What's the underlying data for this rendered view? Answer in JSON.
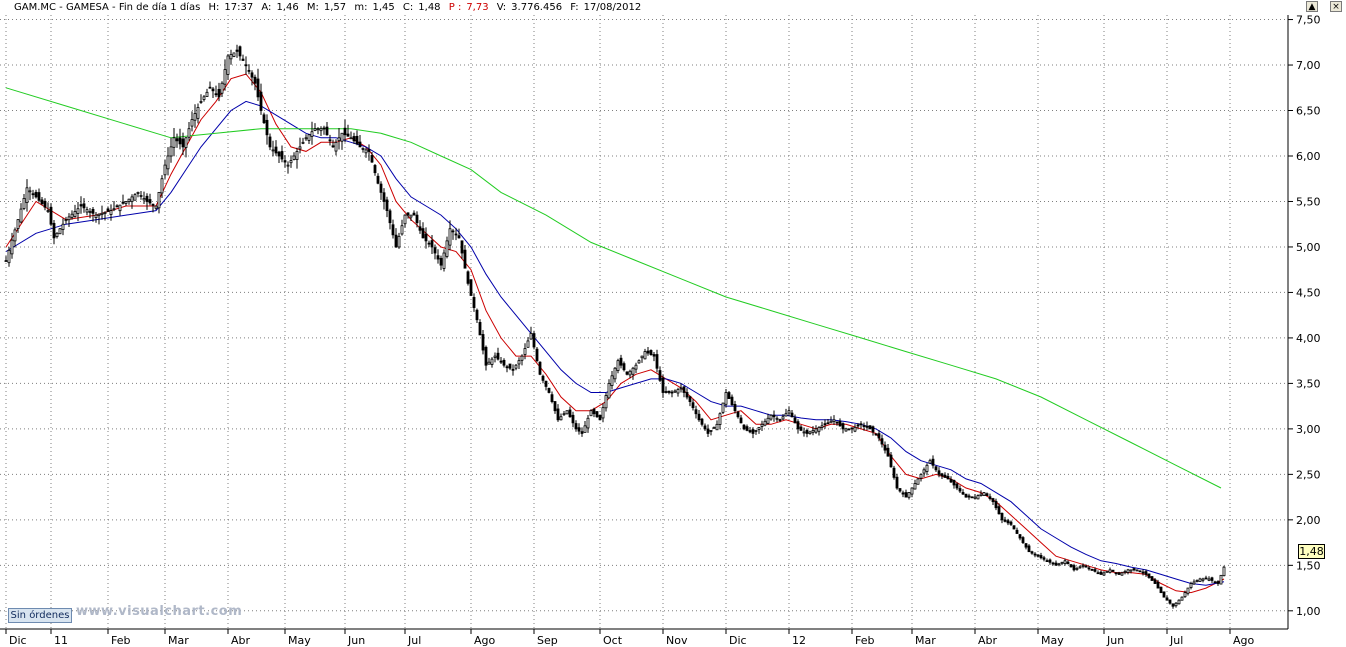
{
  "header": {
    "symbol": "GAM.MC - GAMESA - Fin de día 1 días",
    "hour_label": "H:",
    "hour": "17:37",
    "open_label": "A:",
    "open": "1,46",
    "high_label": "M:",
    "high": "1,57",
    "low_label": "m:",
    "low": "1,45",
    "close_label": "C:",
    "close": "1,48",
    "p_label": "P :",
    "p_value": "7,73",
    "volume_label": "V:",
    "volume": "3.776.456",
    "date_label": "F:",
    "date": "17/08/2012"
  },
  "window_controls": {
    "scroll_up": "▲",
    "close": "×"
  },
  "orders_button": "Sin órdenes",
  "watermark": "www.visualchart.com",
  "last_price": "1,48",
  "colors": {
    "candles": "#000000",
    "ma_short": "#cc0000",
    "ma_mid": "#0000aa",
    "ma_long": "#22cc22",
    "grid": "#7f7f7f"
  },
  "chart_data": {
    "type": "line",
    "title": "",
    "xlabel": "",
    "ylabel": "",
    "ylim": [
      0.8,
      7.55
    ],
    "grid": true,
    "y_ticks": [
      "1,00",
      "1,50",
      "2,00",
      "2,50",
      "3,00",
      "3,50",
      "4,00",
      "4,50",
      "5,00",
      "5,50",
      "6,00",
      "6,50",
      "7,00",
      "7,50"
    ],
    "y_tick_values": [
      1.0,
      1.5,
      2.0,
      2.5,
      3.0,
      3.5,
      4.0,
      4.5,
      5.0,
      5.5,
      6.0,
      6.5,
      7.0,
      7.5
    ],
    "x_ticks": [
      "Dic",
      "11",
      "Feb",
      "Mar",
      "Abr",
      "May",
      "Jun",
      "Jul",
      "Ago",
      "Sep",
      "Oct",
      "Nov",
      "Dic",
      "12",
      "Feb",
      "Mar",
      "Abr",
      "May",
      "Jun",
      "Jul",
      "Ago"
    ],
    "x_tick_index": [
      0,
      15,
      34,
      53,
      74,
      93,
      113,
      133,
      155,
      176,
      198,
      219,
      240,
      261,
      282,
      302,
      323,
      344,
      366,
      387,
      408
    ],
    "close_series": [
      [
        0,
        4.85
      ],
      [
        4,
        5.3
      ],
      [
        7,
        5.65
      ],
      [
        10,
        5.55
      ],
      [
        14,
        5.4
      ],
      [
        16,
        5.1
      ],
      [
        20,
        5.3
      ],
      [
        25,
        5.45
      ],
      [
        30,
        5.35
      ],
      [
        35,
        5.4
      ],
      [
        40,
        5.5
      ],
      [
        44,
        5.6
      ],
      [
        47,
        5.5
      ],
      [
        50,
        5.45
      ],
      [
        53,
        5.9
      ],
      [
        56,
        6.2
      ],
      [
        59,
        6.1
      ],
      [
        62,
        6.4
      ],
      [
        65,
        6.6
      ],
      [
        68,
        6.75
      ],
      [
        71,
        6.65
      ],
      [
        74,
        7.1
      ],
      [
        77,
        7.15
      ],
      [
        80,
        7.0
      ],
      [
        83,
        6.8
      ],
      [
        85,
        6.5
      ],
      [
        88,
        6.1
      ],
      [
        91,
        6.0
      ],
      [
        94,
        5.9
      ],
      [
        97,
        6.05
      ],
      [
        100,
        6.2
      ],
      [
        103,
        6.3
      ],
      [
        106,
        6.3
      ],
      [
        109,
        6.1
      ],
      [
        112,
        6.25
      ],
      [
        115,
        6.2
      ],
      [
        118,
        6.1
      ],
      [
        121,
        6.05
      ],
      [
        124,
        5.7
      ],
      [
        127,
        5.4
      ],
      [
        130,
        5.0
      ],
      [
        133,
        5.35
      ],
      [
        136,
        5.35
      ],
      [
        139,
        5.1
      ],
      [
        142,
        5.0
      ],
      [
        145,
        4.8
      ],
      [
        148,
        5.2
      ],
      [
        151,
        5.1
      ],
      [
        154,
        4.6
      ],
      [
        157,
        4.2
      ],
      [
        160,
        3.7
      ],
      [
        163,
        3.8
      ],
      [
        166,
        3.7
      ],
      [
        169,
        3.65
      ],
      [
        172,
        3.8
      ],
      [
        175,
        4.05
      ],
      [
        178,
        3.6
      ],
      [
        181,
        3.4
      ],
      [
        184,
        3.1
      ],
      [
        187,
        3.2
      ],
      [
        190,
        3.0
      ],
      [
        192,
        2.95
      ],
      [
        195,
        3.2
      ],
      [
        198,
        3.1
      ],
      [
        201,
        3.5
      ],
      [
        204,
        3.75
      ],
      [
        207,
        3.6
      ],
      [
        210,
        3.7
      ],
      [
        213,
        3.85
      ],
      [
        216,
        3.8
      ],
      [
        219,
        3.4
      ],
      [
        222,
        3.4
      ],
      [
        225,
        3.45
      ],
      [
        228,
        3.3
      ],
      [
        231,
        3.1
      ],
      [
        234,
        2.95
      ],
      [
        237,
        3.05
      ],
      [
        240,
        3.4
      ],
      [
        243,
        3.2
      ],
      [
        246,
        3.0
      ],
      [
        249,
        2.95
      ],
      [
        252,
        3.05
      ],
      [
        255,
        3.15
      ],
      [
        258,
        3.1
      ],
      [
        261,
        3.2
      ],
      [
        264,
        3.0
      ],
      [
        267,
        2.95
      ],
      [
        270,
        3.0
      ],
      [
        273,
        3.05
      ],
      [
        276,
        3.1
      ],
      [
        279,
        3.0
      ],
      [
        282,
        3.0
      ],
      [
        285,
        3.05
      ],
      [
        288,
        3.0
      ],
      [
        291,
        2.9
      ],
      [
        294,
        2.7
      ],
      [
        297,
        2.35
      ],
      [
        300,
        2.25
      ],
      [
        302,
        2.35
      ],
      [
        305,
        2.5
      ],
      [
        308,
        2.65
      ],
      [
        311,
        2.5
      ],
      [
        314,
        2.45
      ],
      [
        317,
        2.35
      ],
      [
        320,
        2.25
      ],
      [
        323,
        2.25
      ],
      [
        326,
        2.3
      ],
      [
        329,
        2.2
      ],
      [
        332,
        2.0
      ],
      [
        335,
        1.95
      ],
      [
        338,
        1.8
      ],
      [
        341,
        1.65
      ],
      [
        344,
        1.6
      ],
      [
        347,
        1.55
      ],
      [
        350,
        1.5
      ],
      [
        353,
        1.55
      ],
      [
        356,
        1.45
      ],
      [
        359,
        1.5
      ],
      [
        362,
        1.45
      ],
      [
        365,
        1.4
      ],
      [
        368,
        1.45
      ],
      [
        371,
        1.4
      ],
      [
        374,
        1.45
      ],
      [
        377,
        1.45
      ],
      [
        380,
        1.4
      ],
      [
        383,
        1.3
      ],
      [
        386,
        1.15
      ],
      [
        389,
        1.05
      ],
      [
        392,
        1.15
      ],
      [
        395,
        1.3
      ],
      [
        398,
        1.35
      ],
      [
        401,
        1.35
      ],
      [
        404,
        1.3
      ],
      [
        406,
        1.48
      ]
    ],
    "series": [
      {
        "values": [
          [
            0,
            5.0
          ],
          [
            10,
            5.5
          ],
          [
            20,
            5.3
          ],
          [
            30,
            5.35
          ],
          [
            40,
            5.45
          ],
          [
            50,
            5.45
          ],
          [
            55,
            5.8
          ],
          [
            60,
            6.1
          ],
          [
            65,
            6.4
          ],
          [
            70,
            6.6
          ],
          [
            75,
            6.85
          ],
          [
            80,
            6.9
          ],
          [
            85,
            6.7
          ],
          [
            90,
            6.35
          ],
          [
            95,
            6.1
          ],
          [
            100,
            6.05
          ],
          [
            105,
            6.15
          ],
          [
            110,
            6.15
          ],
          [
            115,
            6.2
          ],
          [
            120,
            6.1
          ],
          [
            125,
            5.9
          ],
          [
            130,
            5.5
          ],
          [
            135,
            5.3
          ],
          [
            140,
            5.15
          ],
          [
            145,
            5.0
          ],
          [
            150,
            4.95
          ],
          [
            155,
            4.75
          ],
          [
            160,
            4.3
          ],
          [
            165,
            4.0
          ],
          [
            170,
            3.8
          ],
          [
            175,
            3.8
          ],
          [
            180,
            3.6
          ],
          [
            185,
            3.35
          ],
          [
            190,
            3.2
          ],
          [
            195,
            3.2
          ],
          [
            200,
            3.3
          ],
          [
            205,
            3.5
          ],
          [
            210,
            3.6
          ],
          [
            215,
            3.65
          ],
          [
            220,
            3.55
          ],
          [
            225,
            3.45
          ],
          [
            230,
            3.3
          ],
          [
            235,
            3.1
          ],
          [
            240,
            3.15
          ],
          [
            245,
            3.2
          ],
          [
            250,
            3.05
          ],
          [
            255,
            3.05
          ],
          [
            260,
            3.1
          ],
          [
            265,
            3.05
          ],
          [
            270,
            3.0
          ],
          [
            275,
            3.05
          ],
          [
            280,
            3.05
          ],
          [
            285,
            3.0
          ],
          [
            290,
            2.95
          ],
          [
            295,
            2.7
          ],
          [
            300,
            2.5
          ],
          [
            305,
            2.45
          ],
          [
            310,
            2.5
          ],
          [
            315,
            2.45
          ],
          [
            320,
            2.35
          ],
          [
            325,
            2.3
          ],
          [
            330,
            2.2
          ],
          [
            335,
            2.05
          ],
          [
            340,
            1.9
          ],
          [
            345,
            1.75
          ],
          [
            350,
            1.6
          ],
          [
            355,
            1.55
          ],
          [
            360,
            1.5
          ],
          [
            365,
            1.45
          ],
          [
            370,
            1.42
          ],
          [
            375,
            1.42
          ],
          [
            380,
            1.4
          ],
          [
            385,
            1.3
          ],
          [
            390,
            1.22
          ],
          [
            395,
            1.2
          ],
          [
            400,
            1.25
          ],
          [
            406,
            1.35
          ]
        ]
      },
      {
        "values": [
          [
            0,
            4.95
          ],
          [
            10,
            5.15
          ],
          [
            20,
            5.25
          ],
          [
            30,
            5.3
          ],
          [
            40,
            5.35
          ],
          [
            50,
            5.4
          ],
          [
            55,
            5.6
          ],
          [
            60,
            5.85
          ],
          [
            65,
            6.1
          ],
          [
            70,
            6.3
          ],
          [
            75,
            6.5
          ],
          [
            80,
            6.6
          ],
          [
            85,
            6.55
          ],
          [
            90,
            6.45
          ],
          [
            95,
            6.35
          ],
          [
            100,
            6.25
          ],
          [
            105,
            6.2
          ],
          [
            110,
            6.2
          ],
          [
            115,
            6.15
          ],
          [
            120,
            6.1
          ],
          [
            125,
            6.0
          ],
          [
            130,
            5.75
          ],
          [
            135,
            5.55
          ],
          [
            140,
            5.45
          ],
          [
            145,
            5.35
          ],
          [
            150,
            5.2
          ],
          [
            155,
            5.0
          ],
          [
            160,
            4.7
          ],
          [
            165,
            4.45
          ],
          [
            170,
            4.25
          ],
          [
            175,
            4.05
          ],
          [
            180,
            3.85
          ],
          [
            185,
            3.65
          ],
          [
            190,
            3.5
          ],
          [
            195,
            3.4
          ],
          [
            200,
            3.4
          ],
          [
            205,
            3.45
          ],
          [
            210,
            3.5
          ],
          [
            215,
            3.55
          ],
          [
            220,
            3.55
          ],
          [
            225,
            3.5
          ],
          [
            230,
            3.4
          ],
          [
            235,
            3.3
          ],
          [
            240,
            3.25
          ],
          [
            245,
            3.25
          ],
          [
            250,
            3.2
          ],
          [
            255,
            3.15
          ],
          [
            260,
            3.15
          ],
          [
            265,
            3.12
          ],
          [
            270,
            3.1
          ],
          [
            275,
            3.1
          ],
          [
            280,
            3.08
          ],
          [
            285,
            3.05
          ],
          [
            290,
            3.0
          ],
          [
            295,
            2.9
          ],
          [
            300,
            2.75
          ],
          [
            305,
            2.65
          ],
          [
            310,
            2.6
          ],
          [
            315,
            2.55
          ],
          [
            320,
            2.45
          ],
          [
            325,
            2.4
          ],
          [
            330,
            2.3
          ],
          [
            335,
            2.2
          ],
          [
            340,
            2.05
          ],
          [
            345,
            1.9
          ],
          [
            350,
            1.8
          ],
          [
            355,
            1.7
          ],
          [
            360,
            1.62
          ],
          [
            365,
            1.55
          ],
          [
            370,
            1.52
          ],
          [
            375,
            1.48
          ],
          [
            380,
            1.45
          ],
          [
            385,
            1.4
          ],
          [
            390,
            1.35
          ],
          [
            395,
            1.3
          ],
          [
            400,
            1.28
          ],
          [
            406,
            1.32
          ]
        ]
      },
      {
        "values": [
          [
            0,
            6.75
          ],
          [
            20,
            6.55
          ],
          [
            40,
            6.35
          ],
          [
            55,
            6.2
          ],
          [
            70,
            6.25
          ],
          [
            85,
            6.3
          ],
          [
            100,
            6.3
          ],
          [
            115,
            6.3
          ],
          [
            125,
            6.25
          ],
          [
            135,
            6.15
          ],
          [
            145,
            6.0
          ],
          [
            155,
            5.85
          ],
          [
            165,
            5.6
          ],
          [
            180,
            5.35
          ],
          [
            195,
            5.05
          ],
          [
            210,
            4.85
          ],
          [
            225,
            4.65
          ],
          [
            240,
            4.45
          ],
          [
            255,
            4.3
          ],
          [
            270,
            4.15
          ],
          [
            285,
            4.0
          ],
          [
            300,
            3.85
          ],
          [
            315,
            3.7
          ],
          [
            330,
            3.55
          ],
          [
            345,
            3.35
          ],
          [
            360,
            3.1
          ],
          [
            375,
            2.85
          ],
          [
            390,
            2.6
          ],
          [
            405,
            2.35
          ]
        ]
      }
    ]
  }
}
